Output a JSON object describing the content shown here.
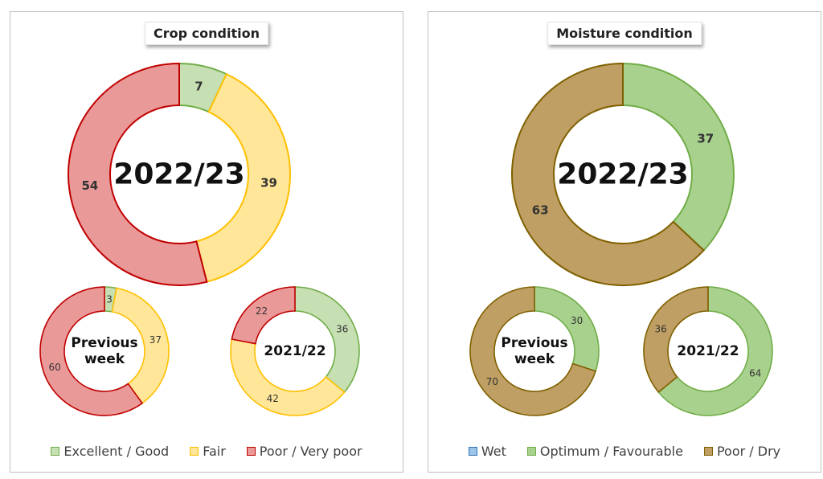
{
  "panels": [
    {
      "title": "Crop condition",
      "legend": [
        {
          "label": "Excellent / Good",
          "fill": "#c6e0b4",
          "stroke": "#70ad47"
        },
        {
          "label": "Fair",
          "fill": "#ffe699",
          "stroke": "#ffc000"
        },
        {
          "label": "Poor / Very poor",
          "fill": "#ea9999",
          "stroke": "#c00000"
        }
      ]
    },
    {
      "title": "Moisture condition",
      "legend": [
        {
          "label": "Wet",
          "fill": "#9dc3e6",
          "stroke": "#2e75b6"
        },
        {
          "label": "Optimum / Favourable",
          "fill": "#a9d18e",
          "stroke": "#70ad47"
        },
        {
          "label": "Poor / Dry",
          "fill": "#bf9f63",
          "stroke": "#7f6000"
        }
      ]
    }
  ],
  "chart_data": [
    {
      "type": "pie",
      "panel": "Crop condition",
      "center_label": "2022/23",
      "categories": [
        "Excellent / Good",
        "Fair",
        "Poor / Very poor"
      ],
      "values": [
        7,
        39,
        54
      ],
      "colors": [
        "#c6e0b4",
        "#ffe699",
        "#ea9999"
      ],
      "strokes": [
        "#70ad47",
        "#ffc000",
        "#c00000"
      ]
    },
    {
      "type": "pie",
      "panel": "Crop condition",
      "center_label": "Previous week",
      "categories": [
        "Excellent / Good",
        "Fair",
        "Poor / Very poor"
      ],
      "values": [
        3,
        37,
        60
      ],
      "colors": [
        "#c6e0b4",
        "#ffe699",
        "#ea9999"
      ],
      "strokes": [
        "#70ad47",
        "#ffc000",
        "#c00000"
      ]
    },
    {
      "type": "pie",
      "panel": "Crop condition",
      "center_label": "2021/22",
      "categories": [
        "Excellent / Good",
        "Fair",
        "Poor / Very poor"
      ],
      "values": [
        36,
        42,
        22
      ],
      "colors": [
        "#c6e0b4",
        "#ffe699",
        "#ea9999"
      ],
      "strokes": [
        "#70ad47",
        "#ffc000",
        "#c00000"
      ]
    },
    {
      "type": "pie",
      "panel": "Moisture condition",
      "center_label": "2022/23",
      "categories": [
        "Wet",
        "Optimum / Favourable",
        "Poor / Dry"
      ],
      "values": [
        0,
        37,
        63
      ],
      "colors": [
        "#9dc3e6",
        "#a9d18e",
        "#bf9f63"
      ],
      "strokes": [
        "#2e75b6",
        "#70ad47",
        "#7f6000"
      ]
    },
    {
      "type": "pie",
      "panel": "Moisture condition",
      "center_label": "Previous week",
      "categories": [
        "Wet",
        "Optimum / Favourable",
        "Poor / Dry"
      ],
      "values": [
        0,
        30,
        70
      ],
      "colors": [
        "#9dc3e6",
        "#a9d18e",
        "#bf9f63"
      ],
      "strokes": [
        "#2e75b6",
        "#70ad47",
        "#7f6000"
      ]
    },
    {
      "type": "pie",
      "panel": "Moisture condition",
      "center_label": "2021/22",
      "categories": [
        "Wet",
        "Optimum / Favourable",
        "Poor / Dry"
      ],
      "values": [
        0,
        64,
        36
      ],
      "colors": [
        "#9dc3e6",
        "#a9d18e",
        "#bf9f63"
      ],
      "strokes": [
        "#2e75b6",
        "#70ad47",
        "#7f6000"
      ]
    }
  ]
}
